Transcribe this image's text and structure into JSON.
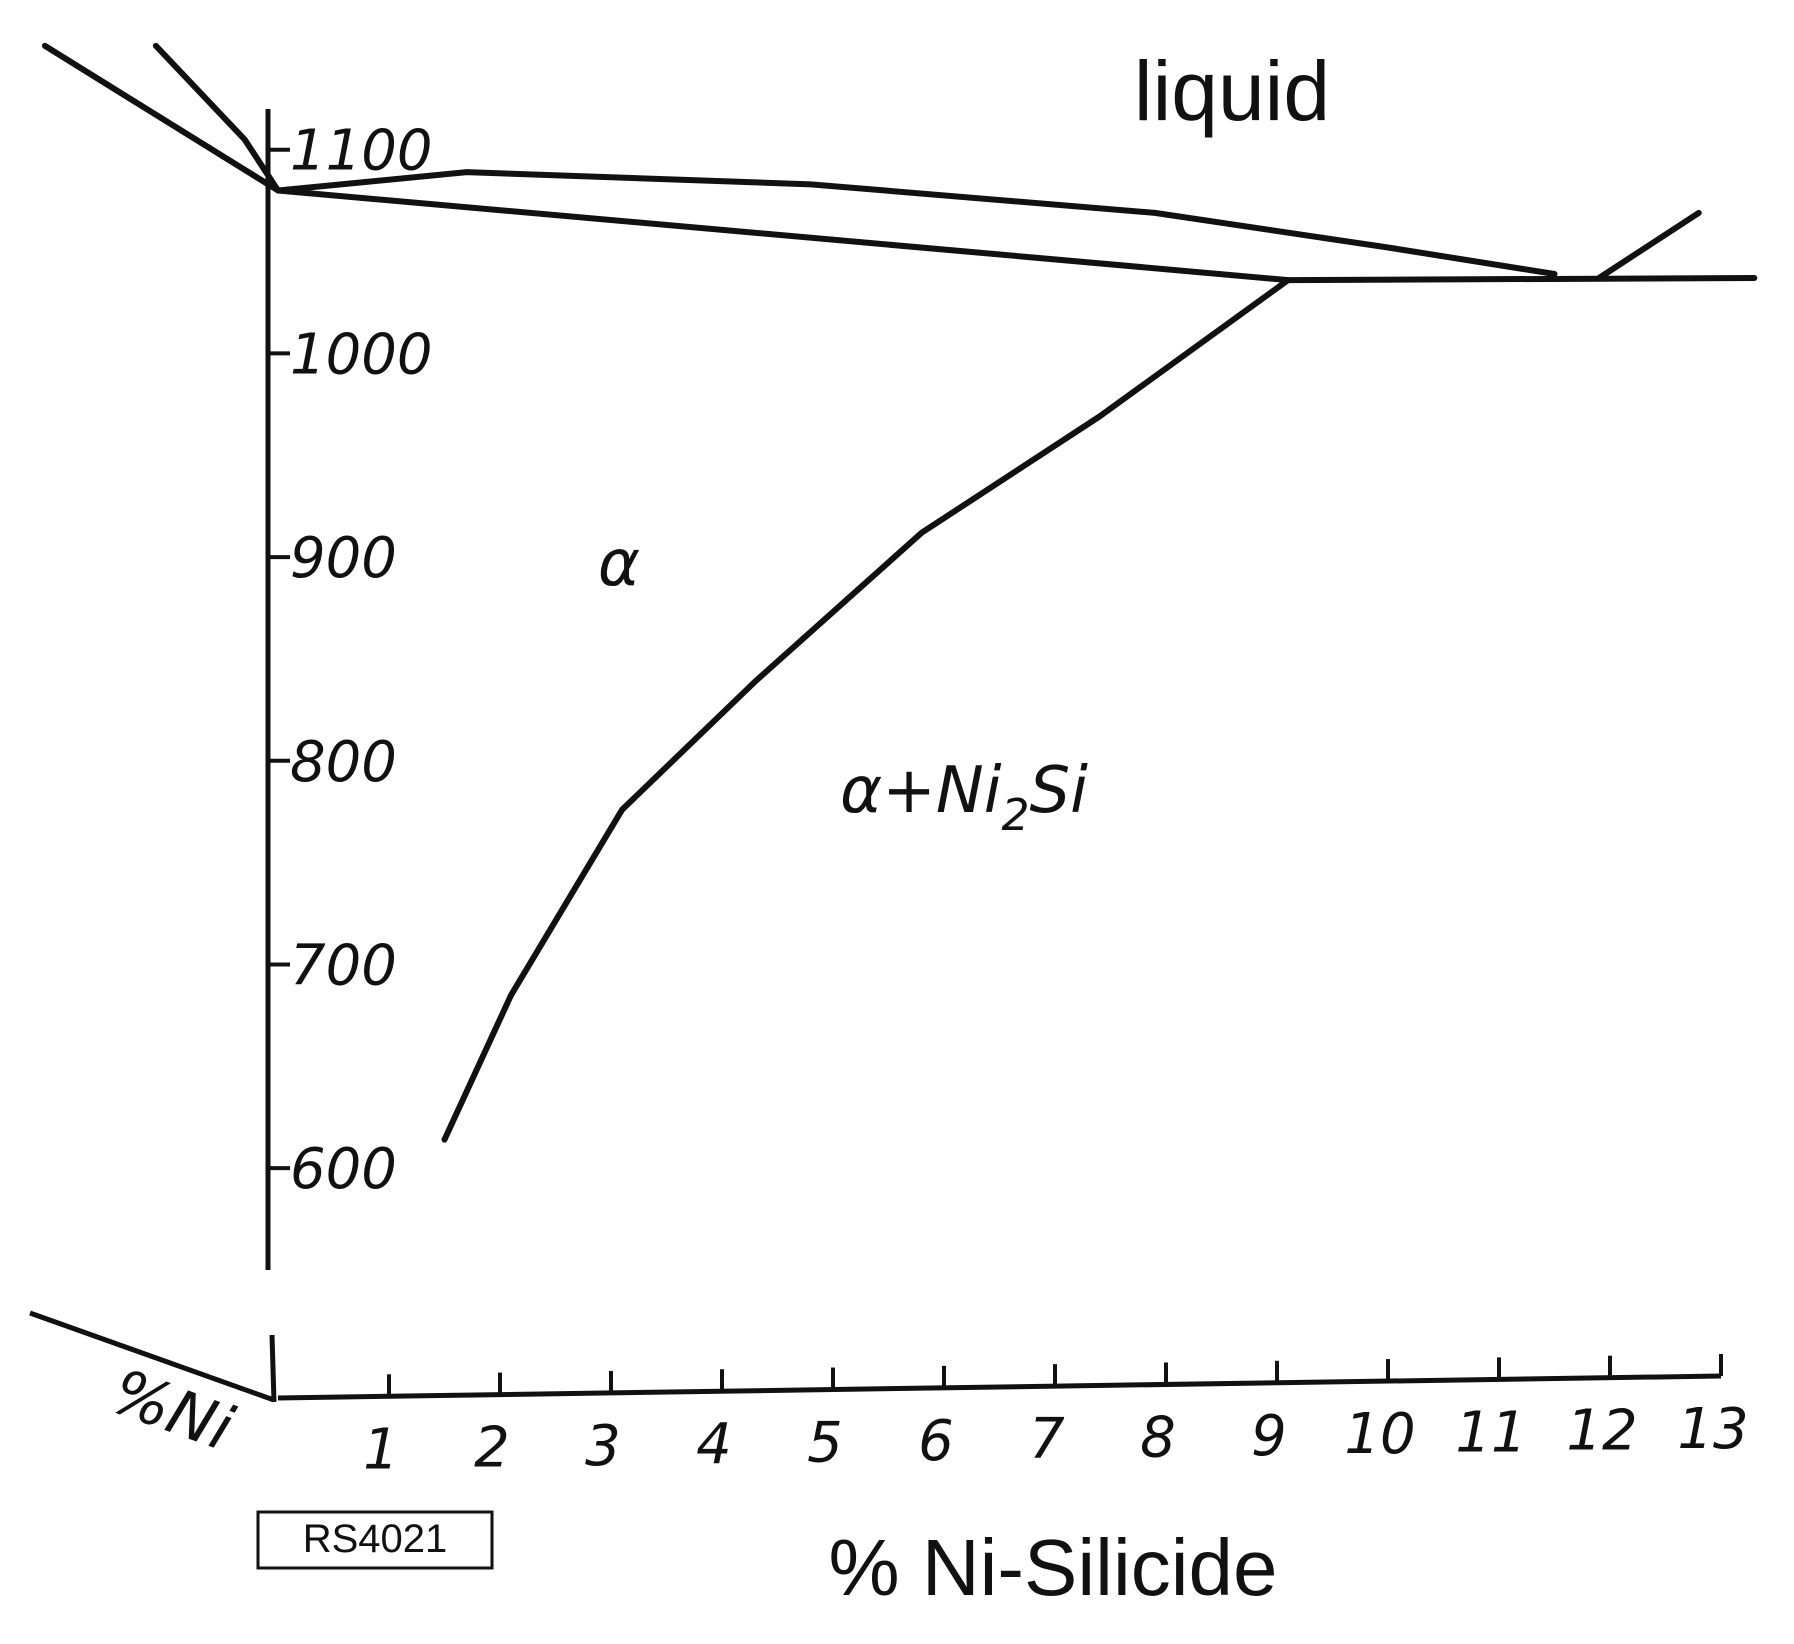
{
  "chart_data": {
    "type": "line",
    "annotations": {
      "liquid": "liquid",
      "alpha": "α",
      "two_phase": "α+Ni",
      "two_phase_sub": "2",
      "two_phase_end": "Si",
      "left_axis": "%Ni",
      "stamp": "RS4021"
    },
    "x_label": "% Ni-Silicide",
    "xlim": [
      0,
      13
    ],
    "xticks": [
      1,
      2,
      3,
      4,
      5,
      6,
      7,
      8,
      9,
      10,
      11,
      12,
      13
    ],
    "ylim": [
      550,
      1120
    ],
    "yticks": [
      600,
      700,
      800,
      900,
      1000,
      1100
    ],
    "series": [
      {
        "color": "#111111",
        "x": [
          0,
          1.7,
          4.8,
          7.9,
          10,
          11.5
        ],
        "values": [
          1080,
          1089,
          1083,
          1069,
          1052,
          1039
        ]
      },
      {
        "color": "#111111",
        "x": [
          0,
          9.1
        ],
        "values": [
          1080,
          1036
        ]
      },
      {
        "color": "#111111",
        "x": [
          1.5,
          2.1,
          3.1,
          4.3,
          5.8,
          7.4,
          9.1
        ],
        "values": [
          614,
          685,
          776,
          839,
          912,
          969,
          1036
        ]
      },
      {
        "color": "#111111",
        "x": [
          9.1,
          13.3
        ],
        "values": [
          1036,
          1037
        ]
      },
      {
        "color": "#111111",
        "x": [
          11.9,
          12.8
        ],
        "values": [
          1037,
          1069
        ]
      },
      {
        "color": "#111111",
        "x": [
          -2.1,
          0
        ],
        "values": [
          1151,
          1080
        ]
      },
      {
        "color": "#111111",
        "x": [
          -1.1,
          -0.3,
          0
        ],
        "values": [
          1151,
          1105,
          1080
        ]
      }
    ]
  }
}
